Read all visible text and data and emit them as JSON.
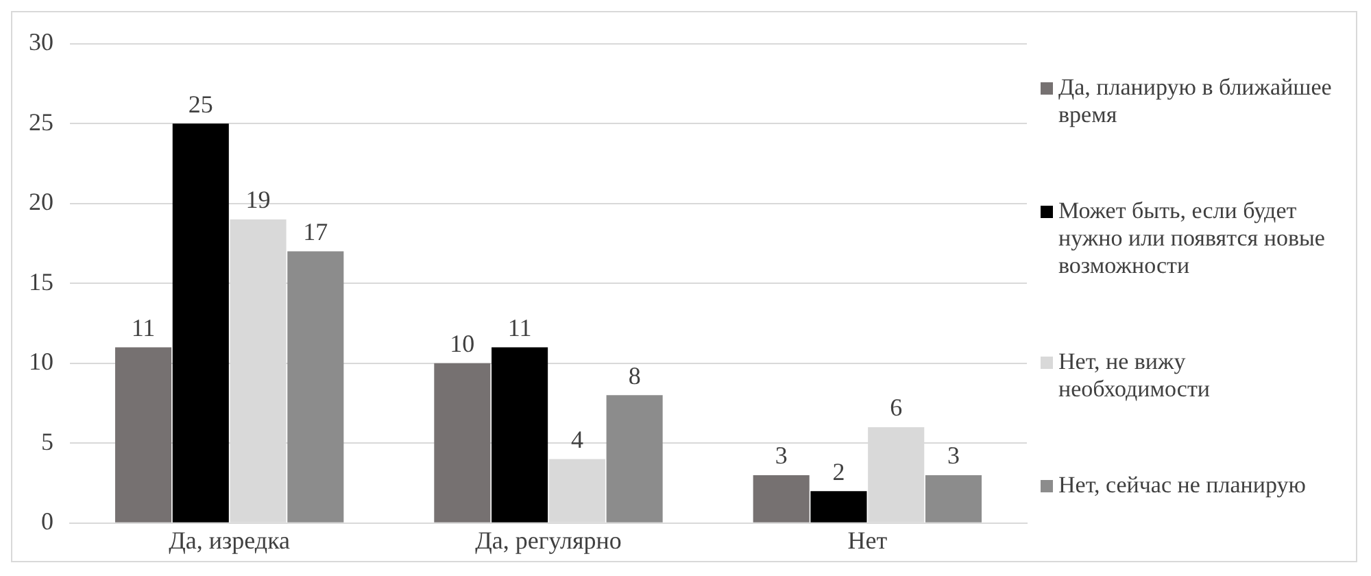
{
  "chart_data": {
    "type": "bar",
    "categories": [
      "Да, изредка",
      "Да, регулярно",
      "Нет"
    ],
    "series": [
      {
        "name": "Да, планирую в ближайшее время",
        "color": "#767171",
        "values": [
          11,
          10,
          3
        ]
      },
      {
        "name": "Может быть, если будет нужно или появятся новые возможности",
        "color": "#000000",
        "values": [
          25,
          11,
          2
        ]
      },
      {
        "name": "Нет, не вижу необходимости",
        "color": "#d9d9d9",
        "values": [
          19,
          4,
          6
        ]
      },
      {
        "name": "Нет, сейчас не планирую",
        "color": "#8c8c8c",
        "values": [
          17,
          8,
          3
        ]
      }
    ],
    "ylim": [
      0,
      30
    ],
    "yticks": [
      0,
      5,
      10,
      15,
      20,
      25,
      30
    ],
    "grid": "y",
    "legend": "right",
    "data_labels": true
  }
}
